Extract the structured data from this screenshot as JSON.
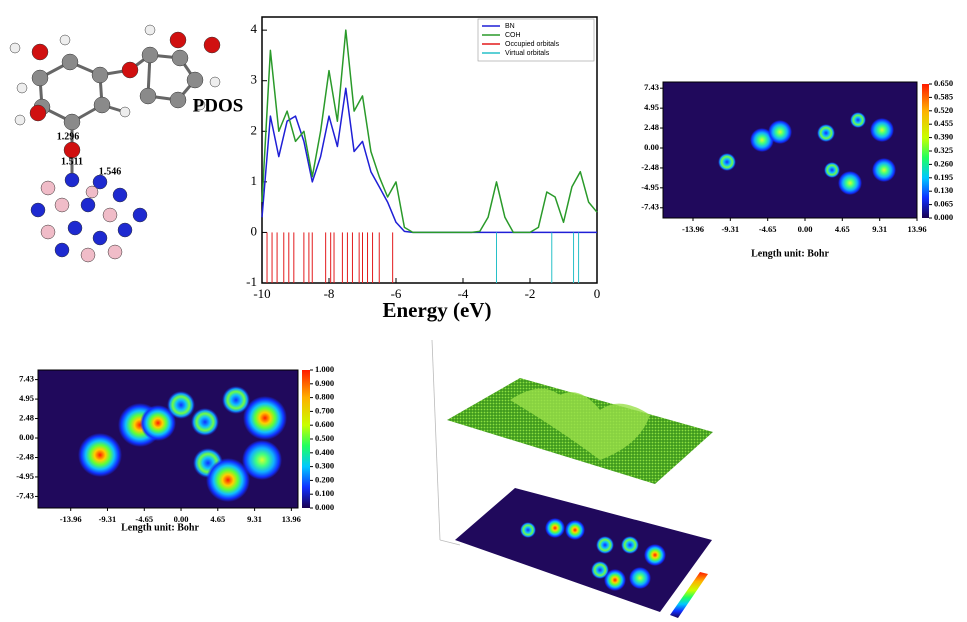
{
  "figure_labels": {
    "pdos": "PDOS",
    "bonds": [
      1.296,
      1.511,
      1.546
    ]
  },
  "chart_data": [
    {
      "type": "line",
      "xlabel": "Energy (eV)",
      "x": [
        -10,
        -9.75,
        -9.5,
        -9.25,
        -9,
        -8.75,
        -8.5,
        -8.25,
        -8,
        -7.75,
        -7.5,
        -7.25,
        -7,
        -6.75,
        -6.5,
        -6.25,
        -6,
        -5.75,
        -5.5,
        -5.25,
        -5,
        -4.75,
        -4.5,
        -4.25,
        -4,
        -3.75,
        -3.5,
        -3.25,
        -3,
        -2.75,
        -2.5,
        -2.25,
        -2,
        -1.75,
        -1.5,
        -1.25,
        -1,
        -0.75,
        -0.5,
        -0.25,
        0
      ],
      "series": [
        {
          "name": "BN",
          "color": "#1f1fd6",
          "values": [
            0.3,
            2.3,
            1.5,
            2.2,
            2.3,
            1.8,
            1.0,
            1.5,
            2.3,
            1.7,
            2.85,
            1.6,
            1.8,
            1.2,
            0.9,
            0.6,
            0.2,
            0.02,
            0,
            0,
            0,
            0,
            0,
            0,
            0,
            0,
            0,
            0,
            0,
            0,
            0,
            0,
            0,
            0,
            0,
            0,
            0,
            0,
            0,
            0,
            0
          ]
        },
        {
          "name": "COH",
          "color": "#2a9a2a",
          "values": [
            0.6,
            3.6,
            2.0,
            2.4,
            1.8,
            2.0,
            1.1,
            2.0,
            3.2,
            2.2,
            4.0,
            2.4,
            2.7,
            1.6,
            1.1,
            0.7,
            1.0,
            0.1,
            0,
            0,
            0,
            0,
            0,
            0,
            0,
            0,
            0.02,
            0.3,
            1.0,
            0.3,
            0,
            0,
            0,
            0.1,
            0.8,
            0.7,
            0.2,
            0.9,
            1.2,
            0.6,
            0.4
          ]
        },
        {
          "name": "Occupied orbitals",
          "color": "#e31a1c",
          "style": "sticks",
          "x": [
            -9.85,
            -9.7,
            -9.55,
            -9.35,
            -9.2,
            -9.05,
            -8.75,
            -8.6,
            -8.5,
            -8.1,
            -7.95,
            -7.85,
            -7.6,
            -7.45,
            -7.3,
            -7.1,
            -7.0,
            -6.85,
            -6.7,
            -6.5,
            -6.1
          ]
        },
        {
          "name": "Virtual orbitals",
          "color": "#27c0c8",
          "style": "sticks",
          "x": [
            -3.0,
            -1.35,
            -0.7,
            -0.55
          ]
        }
      ],
      "xlim": [
        -10,
        0
      ],
      "xticks": [
        -10,
        -8,
        -6,
        -4,
        -2,
        0
      ],
      "ylim": [
        -1,
        4.26
      ],
      "yticks": [
        -1,
        0,
        1,
        2,
        3,
        4
      ],
      "grid": false,
      "legend": "upper right"
    },
    {
      "type": "heatmap",
      "xlabel": "Length unit: Bohr",
      "xlim": [
        -17.7,
        13.96
      ],
      "xticks": [
        -13.96,
        -9.31,
        -4.65,
        {
          "value": 0,
          "label": "0.00"
        },
        4.65,
        9.31,
        13.96
      ],
      "ylim": [
        -8.7,
        8.2
      ],
      "yticks": [
        7.43,
        4.95,
        2.48,
        {
          "value": 0,
          "label": "0.00"
        },
        -2.48,
        -4.95,
        -7.43
      ],
      "clim": [
        0,
        0.65
      ],
      "cticks": [
        {
          "value": 0.65,
          "label": "0.650"
        },
        {
          "value": 0.585,
          "label": "0.585"
        },
        {
          "value": 0.52,
          "label": "0.520"
        },
        {
          "value": 0.455,
          "label": "0.455"
        },
        {
          "value": 0.39,
          "label": "0.390"
        },
        {
          "value": 0.325,
          "label": "0.325"
        },
        {
          "value": 0.26,
          "label": "0.260"
        },
        {
          "value": 0.195,
          "label": "0.195"
        },
        {
          "value": 0.13,
          "label": "0.130"
        },
        {
          "value": 0.065,
          "label": "0.065"
        },
        {
          "value": 0,
          "label": "0.000"
        }
      ]
    },
    {
      "type": "heatmap",
      "xlabel": "Length unit: Bohr",
      "xlim": [
        -18.1,
        14.8
      ],
      "xticks": [
        -13.96,
        -9.31,
        -4.65,
        {
          "value": 0,
          "label": "0.00"
        },
        4.65,
        9.31,
        13.96
      ],
      "ylim": [
        -8.9,
        8.65
      ],
      "yticks": [
        7.43,
        4.95,
        2.48,
        {
          "value": 0,
          "label": "0.00"
        },
        -2.48,
        -4.95,
        -7.43
      ],
      "clim": [
        0,
        1
      ],
      "cticks": [
        {
          "value": 1,
          "label": "1.000"
        },
        {
          "value": 0.9,
          "label": "0.900"
        },
        {
          "value": 0.8,
          "label": "0.800"
        },
        {
          "value": 0.7,
          "label": "0.700"
        },
        {
          "value": 0.6,
          "label": "0.600"
        },
        {
          "value": 0.5,
          "label": "0.500"
        },
        {
          "value": 0.4,
          "label": "0.400"
        },
        {
          "value": 0.3,
          "label": "0.300"
        },
        {
          "value": 0.2,
          "label": "0.200"
        },
        {
          "value": 0.1,
          "label": "0.100"
        },
        {
          "value": 0,
          "label": "0.000"
        }
      ]
    }
  ]
}
